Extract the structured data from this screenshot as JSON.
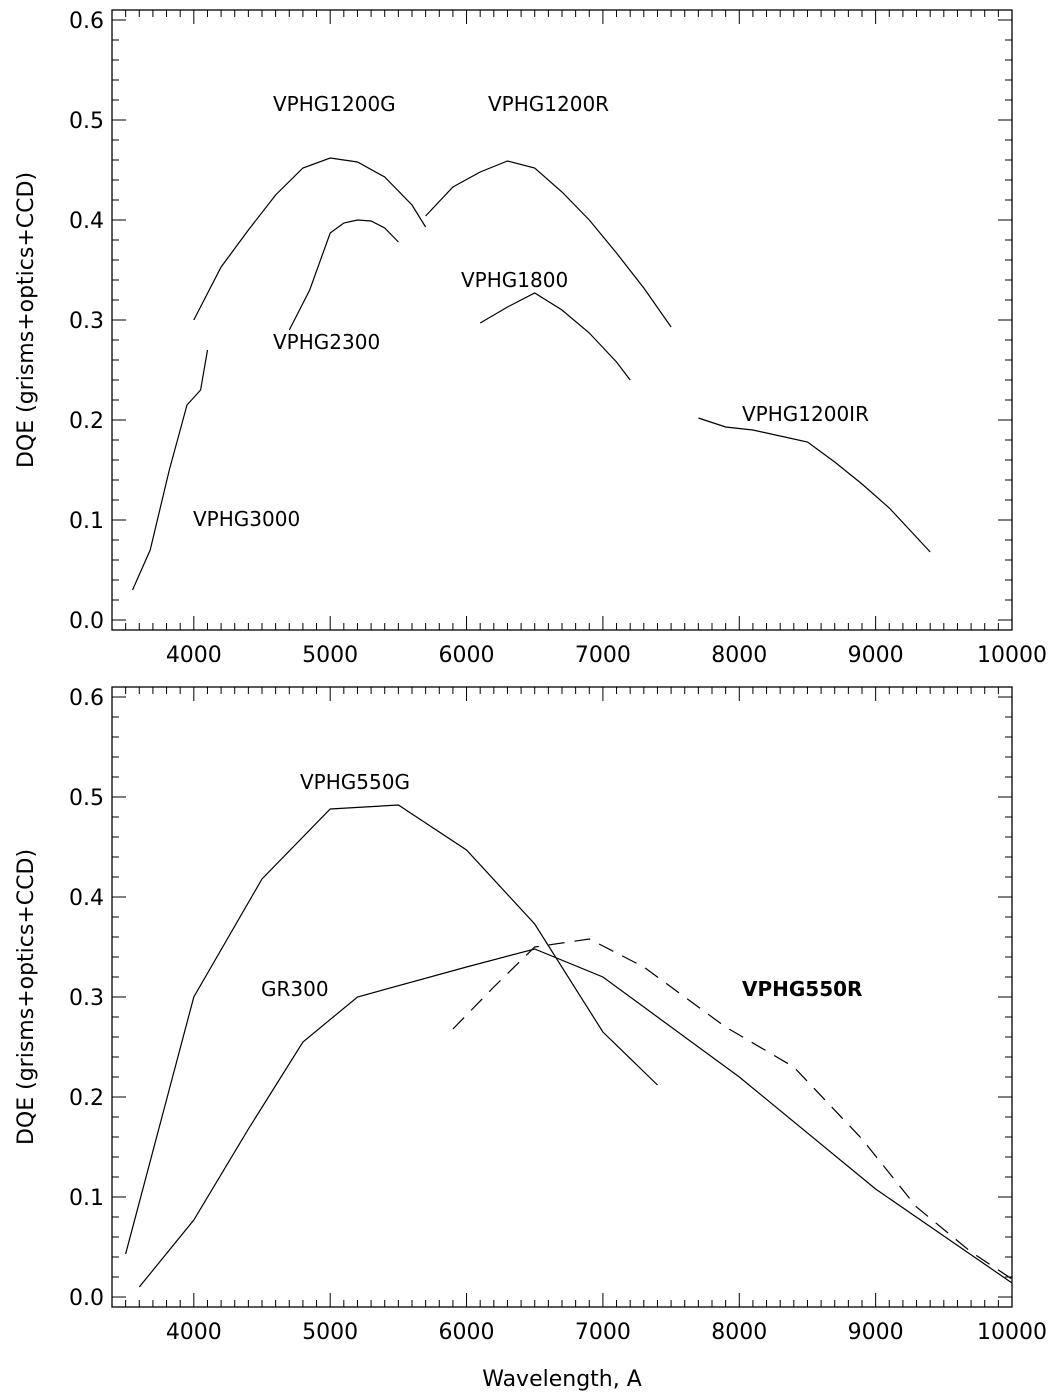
{
  "chart_data": [
    {
      "type": "line",
      "ylabel": "DQE (grisms+optics+CCD)",
      "xlabel": "",
      "xlim": [
        3400,
        10000
      ],
      "ylim": [
        -0.01,
        0.61
      ],
      "xticks": [
        4000,
        5000,
        6000,
        7000,
        8000,
        9000,
        10000
      ],
      "yticks": [
        0.0,
        0.1,
        0.2,
        0.3,
        0.4,
        0.5,
        0.6
      ],
      "ytick_labels": [
        "0.0",
        "0.1",
        "0.2",
        "0.3",
        "0.4",
        "0.5",
        "0.6"
      ],
      "grid": false,
      "series": [
        {
          "name": "VPHG3000",
          "style": "solid",
          "x": [
            3550,
            3680,
            3820,
            3950,
            4050,
            4100
          ],
          "y": [
            0.03,
            0.07,
            0.15,
            0.215,
            0.23,
            0.27
          ]
        },
        {
          "name": "VPHG1200G",
          "style": "solid",
          "x": [
            4000,
            4200,
            4400,
            4600,
            4800,
            5000,
            5200,
            5400,
            5600,
            5700
          ],
          "y": [
            0.3,
            0.353,
            0.39,
            0.425,
            0.452,
            0.462,
            0.458,
            0.443,
            0.415,
            0.393
          ]
        },
        {
          "name": "VPHG2300",
          "style": "solid",
          "x": [
            4700,
            4850,
            5000,
            5100,
            5200,
            5300,
            5400,
            5500
          ],
          "y": [
            0.29,
            0.33,
            0.387,
            0.397,
            0.4,
            0.399,
            0.392,
            0.378
          ]
        },
        {
          "name": "VPHG1200R",
          "style": "solid",
          "x": [
            5700,
            5900,
            6100,
            6300,
            6500,
            6700,
            6900,
            7100,
            7300,
            7500
          ],
          "y": [
            0.404,
            0.433,
            0.448,
            0.459,
            0.452,
            0.428,
            0.4,
            0.367,
            0.332,
            0.293
          ]
        },
        {
          "name": "VPHG1800",
          "style": "solid",
          "x": [
            6100,
            6300,
            6500,
            6700,
            6900,
            7100,
            7200
          ],
          "y": [
            0.297,
            0.313,
            0.327,
            0.31,
            0.287,
            0.258,
            0.24
          ]
        },
        {
          "name": "VPHG1200IR",
          "style": "solid",
          "x": [
            7700,
            7900,
            8100,
            8300,
            8500,
            8700,
            8900,
            9100,
            9400
          ],
          "y": [
            0.202,
            0.193,
            0.19,
            0.184,
            0.178,
            0.158,
            0.136,
            0.112,
            0.068
          ]
        }
      ]
    },
    {
      "type": "line",
      "ylabel": "DQE (grisms+optics+CCD)",
      "xlabel": "Wavelength, A",
      "xlim": [
        3400,
        10000
      ],
      "ylim": [
        -0.01,
        0.61
      ],
      "xticks": [
        4000,
        5000,
        6000,
        7000,
        8000,
        9000,
        10000
      ],
      "yticks": [
        0.0,
        0.1,
        0.2,
        0.3,
        0.4,
        0.5,
        0.6
      ],
      "ytick_labels": [
        "0.0",
        "0.1",
        "0.2",
        "0.3",
        "0.4",
        "0.5",
        "0.6"
      ],
      "grid": false,
      "series": [
        {
          "name": "VPHG550G",
          "style": "solid",
          "x": [
            3500,
            4000,
            4500,
            5000,
            5500,
            6000,
            6500,
            7000,
            7400
          ],
          "y": [
            0.043,
            0.3,
            0.418,
            0.488,
            0.492,
            0.447,
            0.373,
            0.265,
            0.212
          ]
        },
        {
          "name": "GR300",
          "style": "solid",
          "x": [
            3600,
            4000,
            4400,
            4800,
            5200,
            6000,
            6500,
            7000,
            8000,
            9000,
            10000
          ],
          "y": [
            0.01,
            0.077,
            0.168,
            0.255,
            0.3,
            0.33,
            0.348,
            0.32,
            0.22,
            0.108,
            0.014
          ]
        },
        {
          "name": "VPHG550R",
          "style": "dashed",
          "x": [
            5900,
            6200,
            6500,
            6900,
            7300,
            7600,
            7900,
            8400,
            8900,
            9300,
            9700,
            10000
          ],
          "y": [
            0.268,
            0.31,
            0.35,
            0.358,
            0.33,
            0.3,
            0.27,
            0.23,
            0.158,
            0.09,
            0.045,
            0.018
          ]
        }
      ]
    }
  ]
}
